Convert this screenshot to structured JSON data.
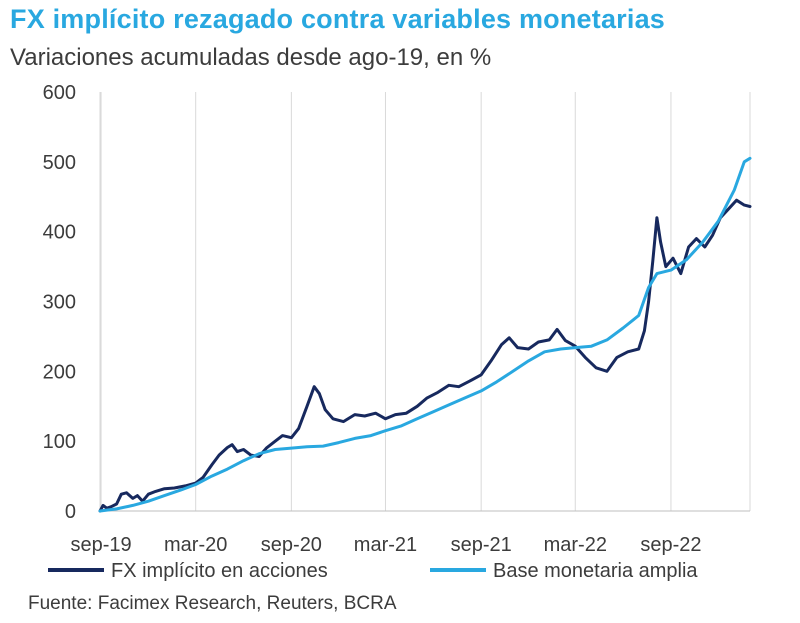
{
  "chart_data": {
    "type": "line",
    "title": "FX implícito rezagado contra variables monetarias",
    "subtitle": "Variaciones acumuladas desde ago-19, en %",
    "source": "Fuente: Facimex Research, Reuters, BCRA",
    "x_ticks": [
      "sep-19",
      "mar-20",
      "sep-20",
      "mar-21",
      "sep-21",
      "mar-22",
      "sep-22"
    ],
    "x_range": [
      "2019-08-30",
      "2023-01-31"
    ],
    "ylim": [
      0,
      600
    ],
    "y_ticks": [
      0,
      100,
      200,
      300,
      400,
      500,
      600
    ],
    "grid": "vertical",
    "legend_position": "bottom",
    "colors": {
      "fx": "#17295e",
      "base": "#29a8e0",
      "title": "#29a8e0",
      "text": "#3c3c3c",
      "grid": "#d9d9d9"
    },
    "series": [
      {
        "name": "FX implícito en acciones",
        "points": [
          [
            "2019-08-30",
            0
          ],
          [
            "2019-09-05",
            8
          ],
          [
            "2019-09-12",
            4
          ],
          [
            "2019-09-20",
            6
          ],
          [
            "2019-10-01",
            10
          ],
          [
            "2019-10-10",
            24
          ],
          [
            "2019-10-20",
            26
          ],
          [
            "2019-11-01",
            18
          ],
          [
            "2019-11-10",
            22
          ],
          [
            "2019-11-20",
            14
          ],
          [
            "2019-12-01",
            24
          ],
          [
            "2019-12-15",
            28
          ],
          [
            "2020-01-01",
            32
          ],
          [
            "2020-01-20",
            33
          ],
          [
            "2020-02-10",
            36
          ],
          [
            "2020-03-01",
            40
          ],
          [
            "2020-03-15",
            48
          ],
          [
            "2020-04-01",
            66
          ],
          [
            "2020-04-15",
            80
          ],
          [
            "2020-05-01",
            91
          ],
          [
            "2020-05-10",
            95
          ],
          [
            "2020-05-20",
            85
          ],
          [
            "2020-06-01",
            88
          ],
          [
            "2020-06-15",
            80
          ],
          [
            "2020-07-01",
            78
          ],
          [
            "2020-07-15",
            90
          ],
          [
            "2020-08-01",
            100
          ],
          [
            "2020-08-15",
            108
          ],
          [
            "2020-09-01",
            105
          ],
          [
            "2020-09-15",
            118
          ],
          [
            "2020-10-01",
            150
          ],
          [
            "2020-10-15",
            178
          ],
          [
            "2020-10-25",
            168
          ],
          [
            "2020-11-05",
            145
          ],
          [
            "2020-11-20",
            132
          ],
          [
            "2020-12-10",
            128
          ],
          [
            "2021-01-01",
            138
          ],
          [
            "2021-01-20",
            136
          ],
          [
            "2021-02-10",
            140
          ],
          [
            "2021-03-01",
            132
          ],
          [
            "2021-03-20",
            138
          ],
          [
            "2021-04-10",
            140
          ],
          [
            "2021-05-01",
            150
          ],
          [
            "2021-05-20",
            162
          ],
          [
            "2021-06-10",
            170
          ],
          [
            "2021-07-01",
            180
          ],
          [
            "2021-07-20",
            178
          ],
          [
            "2021-08-10",
            186
          ],
          [
            "2021-09-01",
            195
          ],
          [
            "2021-09-20",
            215
          ],
          [
            "2021-10-10",
            238
          ],
          [
            "2021-10-25",
            248
          ],
          [
            "2021-11-10",
            234
          ],
          [
            "2021-12-01",
            232
          ],
          [
            "2021-12-20",
            242
          ],
          [
            "2022-01-10",
            245
          ],
          [
            "2022-01-25",
            260
          ],
          [
            "2022-02-10",
            244
          ],
          [
            "2022-03-01",
            236
          ],
          [
            "2022-03-20",
            220
          ],
          [
            "2022-04-10",
            205
          ],
          [
            "2022-05-01",
            200
          ],
          [
            "2022-05-20",
            220
          ],
          [
            "2022-06-10",
            228
          ],
          [
            "2022-07-01",
            232
          ],
          [
            "2022-07-12",
            258
          ],
          [
            "2022-07-20",
            300
          ],
          [
            "2022-07-28",
            358
          ],
          [
            "2022-08-05",
            420
          ],
          [
            "2022-08-12",
            385
          ],
          [
            "2022-08-22",
            350
          ],
          [
            "2022-09-05",
            362
          ],
          [
            "2022-09-20",
            340
          ],
          [
            "2022-10-05",
            378
          ],
          [
            "2022-10-20",
            390
          ],
          [
            "2022-11-05",
            378
          ],
          [
            "2022-11-20",
            395
          ],
          [
            "2022-12-05",
            420
          ],
          [
            "2022-12-20",
            432
          ],
          [
            "2023-01-05",
            445
          ],
          [
            "2023-01-20",
            438
          ],
          [
            "2023-01-31",
            436
          ]
        ]
      },
      {
        "name": "Base monetaria amplia",
        "points": [
          [
            "2019-08-30",
            0
          ],
          [
            "2019-10-01",
            3
          ],
          [
            "2019-11-01",
            8
          ],
          [
            "2019-12-01",
            14
          ],
          [
            "2020-01-01",
            22
          ],
          [
            "2020-02-01",
            30
          ],
          [
            "2020-03-01",
            38
          ],
          [
            "2020-04-01",
            50
          ],
          [
            "2020-05-01",
            60
          ],
          [
            "2020-06-01",
            72
          ],
          [
            "2020-07-01",
            82
          ],
          [
            "2020-08-01",
            88
          ],
          [
            "2020-09-01",
            90
          ],
          [
            "2020-10-01",
            92
          ],
          [
            "2020-11-01",
            93
          ],
          [
            "2020-12-01",
            98
          ],
          [
            "2021-01-01",
            104
          ],
          [
            "2021-02-01",
            108
          ],
          [
            "2021-03-01",
            115
          ],
          [
            "2021-04-01",
            122
          ],
          [
            "2021-05-01",
            132
          ],
          [
            "2021-06-01",
            142
          ],
          [
            "2021-07-01",
            152
          ],
          [
            "2021-08-01",
            162
          ],
          [
            "2021-09-01",
            172
          ],
          [
            "2021-10-01",
            185
          ],
          [
            "2021-11-01",
            200
          ],
          [
            "2021-12-01",
            215
          ],
          [
            "2022-01-01",
            228
          ],
          [
            "2022-02-01",
            232
          ],
          [
            "2022-03-01",
            234
          ],
          [
            "2022-04-01",
            236
          ],
          [
            "2022-05-01",
            245
          ],
          [
            "2022-06-01",
            262
          ],
          [
            "2022-07-01",
            280
          ],
          [
            "2022-07-20",
            320
          ],
          [
            "2022-08-05",
            340
          ],
          [
            "2022-09-01",
            345
          ],
          [
            "2022-10-01",
            360
          ],
          [
            "2022-11-01",
            385
          ],
          [
            "2022-12-01",
            415
          ],
          [
            "2023-01-01",
            460
          ],
          [
            "2023-01-20",
            500
          ],
          [
            "2023-01-31",
            505
          ]
        ]
      }
    ]
  }
}
